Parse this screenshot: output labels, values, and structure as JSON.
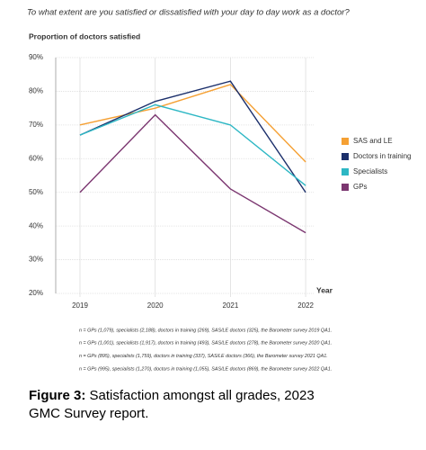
{
  "chart_data": {
    "type": "line",
    "title": "To what extent are you satisfied or dissatisfied with your day to day work as a doctor?",
    "y_label": "Proportion of doctors satisfied",
    "x_label": "Year",
    "categories": [
      "2019",
      "2020",
      "2021",
      "2022"
    ],
    "series": [
      {
        "name": "SAS and LE",
        "color": "#f5a033",
        "values": [
          70,
          75,
          82,
          59
        ]
      },
      {
        "name": "Doctors in training",
        "color": "#1b2f6b",
        "values": [
          67,
          77,
          83,
          50
        ]
      },
      {
        "name": "Specialists",
        "color": "#2db7c4",
        "values": [
          67,
          76,
          70,
          52
        ]
      },
      {
        "name": "GPs",
        "color": "#7b3670",
        "values": [
          50,
          73,
          51,
          38
        ]
      }
    ],
    "ylim": [
      20,
      90
    ],
    "yticks": [
      {
        "value": 20,
        "label": "20%"
      },
      {
        "value": 30,
        "label": "30%"
      },
      {
        "value": 40,
        "label": "40%"
      },
      {
        "value": 50,
        "label": "50%"
      },
      {
        "value": 60,
        "label": "60%"
      },
      {
        "value": 70,
        "label": "70%"
      },
      {
        "value": 80,
        "label": "80%"
      },
      {
        "value": 90,
        "label": "90%"
      }
    ],
    "grid": true,
    "legend": "right",
    "footnotes": [
      "n = GPs (1,079), specialists (2,188), doctors in training (269), SAS/LE doctors (325), the Barometer survey 2019 QA1.",
      "n = GPs (1,001), specialists (1,917), doctors in training (493), SAS/LE doctors (278), the Barometer survey 2020 QA1.",
      "n = GPs (895), specialists (1,759), doctors in training (337), SAS/LE doctors (366), the Barometer survey 2021 QA1.",
      "n = GPs (995), specialists (1,270), doctors in training (1,055), SAS/LE doctors (869), the Barometer survey 2022 QA1."
    ]
  },
  "caption": {
    "label": "Figure 3:",
    "text": "Satisfaction amongst all grades, 2023 GMC Survey report."
  }
}
